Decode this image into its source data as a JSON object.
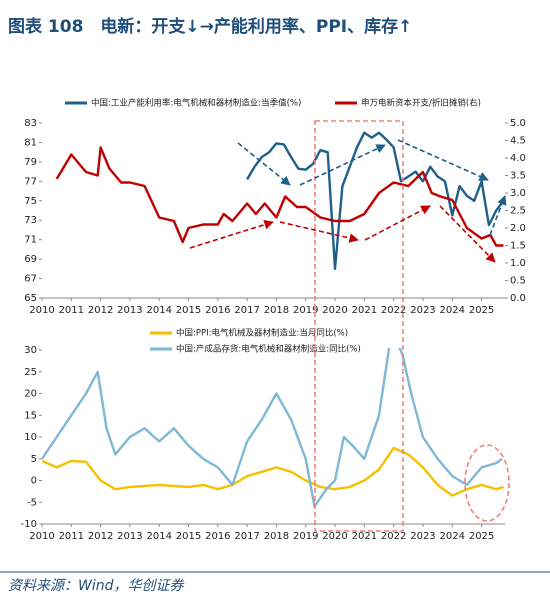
{
  "title": "图表 108　电新：开支↓→产能利用率、PPI、库存↑",
  "source": "资料来源：Wind，华创证券",
  "chart_data": [
    {
      "type": "line",
      "xlim": [
        2010,
        2025.8
      ],
      "xticks": [
        2010,
        2011,
        2012,
        2013,
        2014,
        2015,
        2016,
        2017,
        2018,
        2019,
        2020,
        2021,
        2022,
        2023,
        2024,
        2025
      ],
      "ylim": [
        65,
        83
      ],
      "yticks": [
        65,
        67,
        69,
        71,
        73,
        75,
        77,
        79,
        81,
        83
      ],
      "y2lim": [
        0,
        5
      ],
      "y2ticks": [
        {
          "value": 0,
          "label": "0.0"
        },
        {
          "value": 0.5,
          "label": "0.5"
        },
        {
          "value": 1,
          "label": "1.0"
        },
        {
          "value": 1.5,
          "label": "1.5"
        },
        {
          "value": 2,
          "label": "2.0"
        },
        {
          "value": 2.5,
          "label": "2.5"
        },
        {
          "value": 3,
          "label": "3.0"
        },
        {
          "value": 3.5,
          "label": "3.5"
        },
        {
          "value": 4,
          "label": "4.0"
        },
        {
          "value": 4.5,
          "label": "4.5"
        },
        {
          "value": 5,
          "label": "5.0"
        }
      ],
      "series": [
        {
          "name": "中国:工业产能利用率:电气机械和器材制造业:当季值(%)",
          "color": "#1f5f8b",
          "x": [
            2017.0,
            2017.25,
            2017.5,
            2017.75,
            2018.0,
            2018.25,
            2018.5,
            2018.75,
            2019.0,
            2019.25,
            2019.5,
            2019.75,
            2020.0,
            2020.25,
            2020.5,
            2020.75,
            2021.0,
            2021.25,
            2021.5,
            2021.75,
            2022.0,
            2022.25,
            2022.5,
            2022.75,
            2023.0,
            2023.25,
            2023.5,
            2023.75,
            2024.0,
            2024.25,
            2024.5,
            2024.75,
            2025.0,
            2025.25,
            2025.5,
            2025.75
          ],
          "values": [
            77.2,
            78.5,
            79.5,
            80.0,
            80.9,
            80.8,
            79.5,
            78.3,
            78.2,
            78.8,
            80.2,
            80.0,
            68.0,
            76.5,
            78.5,
            80.5,
            82.0,
            81.5,
            82.0,
            81.3,
            80.5,
            77.0,
            77.5,
            78.0,
            77.0,
            78.5,
            77.5,
            77.0,
            73.5,
            76.5,
            75.5,
            75.0,
            77.0,
            72.5,
            74.0,
            75.0
          ]
        },
        {
          "name": "申万电新资本开支/折旧摊销(右)",
          "color": "#c00000",
          "axis": "y2",
          "x": [
            2010.5,
            2011.0,
            2011.5,
            2011.9,
            2012.0,
            2012.3,
            2012.7,
            2013.0,
            2013.5,
            2014.0,
            2014.5,
            2014.8,
            2015.0,
            2015.5,
            2016.0,
            2016.2,
            2016.5,
            2017.0,
            2017.3,
            2017.6,
            2018.0,
            2018.3,
            2018.7,
            2019.0,
            2019.5,
            2020.0,
            2020.5,
            2021.0,
            2021.5,
            2022.0,
            2022.5,
            2023.0,
            2023.3,
            2023.6,
            2024.0,
            2024.5,
            2025.0,
            2025.3,
            2025.5,
            2025.75
          ],
          "values": [
            3.4,
            4.1,
            3.6,
            3.5,
            4.3,
            3.7,
            3.3,
            3.3,
            3.2,
            2.3,
            2.2,
            1.6,
            2.0,
            2.1,
            2.1,
            2.4,
            2.2,
            2.7,
            2.4,
            2.7,
            2.3,
            2.9,
            2.6,
            2.6,
            2.3,
            2.2,
            2.2,
            2.4,
            3.0,
            3.3,
            3.2,
            3.6,
            3.0,
            2.9,
            2.8,
            2.0,
            1.7,
            1.8,
            1.5,
            1.5
          ]
        }
      ]
    },
    {
      "type": "line",
      "xlim": [
        2010,
        2025.8
      ],
      "xticks": [
        2010,
        2011,
        2012,
        2013,
        2014,
        2015,
        2016,
        2017,
        2018,
        2019,
        2020,
        2021,
        2022,
        2023,
        2024,
        2025
      ],
      "ylim": [
        -10,
        30
      ],
      "yticks": [
        -10,
        -5,
        0,
        5,
        10,
        15,
        20,
        25,
        30
      ],
      "series": [
        {
          "name": "中国:PPI:电气机械及器材制造业:当月同比(%)",
          "color": "#f5c000",
          "x": [
            2010.0,
            2010.5,
            2011.0,
            2011.5,
            2012.0,
            2012.5,
            2013.0,
            2014.0,
            2015.0,
            2015.5,
            2016.0,
            2016.5,
            2017.0,
            2017.5,
            2018.0,
            2018.5,
            2019.0,
            2019.5,
            2020.0,
            2020.5,
            2021.0,
            2021.5,
            2022.0,
            2022.5,
            2023.0,
            2023.5,
            2024.0,
            2024.5,
            2025.0,
            2025.5,
            2025.75
          ],
          "values": [
            4.5,
            3,
            4.5,
            4.3,
            0,
            -2,
            -1.5,
            -1,
            -1.5,
            -1,
            -2,
            -1,
            1,
            2,
            3,
            2,
            0,
            -1.5,
            -2,
            -1.5,
            0,
            2.5,
            7.5,
            6,
            3,
            -1,
            -3.5,
            -2,
            -1,
            -2,
            -1.5
          ]
        },
        {
          "name": "中国:产成品存货:电气机械和器材制造业:同比(%)",
          "color": "#7fb8d4",
          "x": [
            2010.0,
            2010.5,
            2011.0,
            2011.5,
            2011.9,
            2012.2,
            2012.5,
            2013.0,
            2013.5,
            2014.0,
            2014.5,
            2015.0,
            2015.5,
            2016.0,
            2016.5,
            2017.0,
            2017.5,
            2018.0,
            2018.5,
            2019.0,
            2019.3,
            2019.7,
            2020.0,
            2020.3,
            2020.6,
            2021.0,
            2021.5,
            2021.9,
            2022.1,
            2022.3,
            2022.6,
            2023.0,
            2023.5,
            2024.0,
            2024.5,
            2025.0,
            2025.5,
            2025.7
          ],
          "values": [
            5,
            10,
            15,
            20,
            25,
            12,
            6,
            10,
            12,
            9,
            12,
            8,
            5,
            3,
            -1,
            9,
            14,
            20,
            14,
            5,
            -6,
            -2,
            0,
            10,
            8,
            5,
            15,
            33,
            32,
            29,
            20,
            10,
            5,
            1,
            -1,
            3,
            4,
            5
          ]
        }
      ]
    }
  ]
}
